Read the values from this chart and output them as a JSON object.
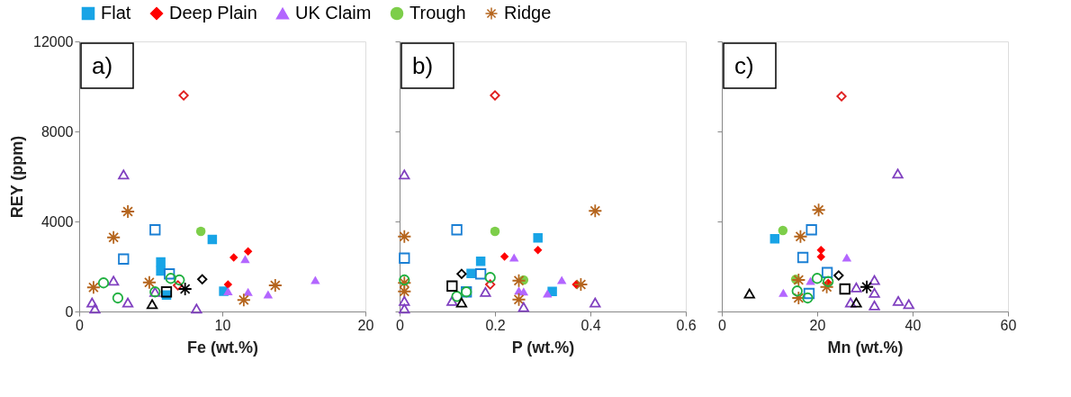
{
  "chart_data": [
    {
      "type": "scatter",
      "xlabel": "Fe (wt.%)",
      "ylabel": "REY (ppm)",
      "xlim": [
        0,
        20
      ],
      "xticks": [
        0,
        10,
        20
      ],
      "ylim": [
        0,
        12000
      ],
      "yticks": [
        0,
        4000,
        8000,
        12000
      ],
      "grid": false,
      "legend": "top",
      "annotations": [
        "a)"
      ],
      "series": [
        {
          "name": "Flat",
          "color": "#18a4e6",
          "marker": "square",
          "x": [
            5.7,
            5.7,
            9.3,
            10.1,
            6.1
          ],
          "values": [
            2200,
            1800,
            3200,
            900,
            730
          ]
        },
        {
          "name": "Deep Plain",
          "color": "#ff0000",
          "marker": "diamond",
          "x": [
            10.8,
            11.8,
            10.4
          ],
          "values": [
            2400,
            2670,
            1200
          ]
        },
        {
          "name": "UK Claim",
          "color": "#b366ff",
          "marker": "triangle",
          "x": [
            11.6,
            16.5,
            10.4,
            11.8,
            13.2
          ],
          "values": [
            2330,
            1400,
            900,
            870,
            760
          ]
        },
        {
          "name": "Trough",
          "color": "#7dce4a",
          "marker": "circle",
          "x": [
            8.5
          ],
          "values": [
            3560
          ]
        },
        {
          "name": "Ridge",
          "color": "#b5651d",
          "marker": "cross",
          "x": [
            3.4,
            2.4,
            1.0,
            4.9,
            13.7,
            11.5
          ],
          "values": [
            4440,
            3290,
            1070,
            1290,
            1160,
            510
          ]
        },
        {
          "color": "#1a7fd4",
          "marker": "square",
          "x": [
            5.3,
            3.1,
            6.3
          ],
          "values": [
            3630,
            2330,
            1670
          ]
        },
        {
          "color": "#e02020",
          "marker": "diamond",
          "x": [
            7.3,
            6.9
          ],
          "values": [
            9600,
            1160
          ]
        },
        {
          "color": "#8040c0",
          "marker": "triangle",
          "x": [
            3.1,
            2.4,
            3.4,
            0.9,
            1.1,
            8.2,
            5.3
          ],
          "values": [
            6090,
            1370,
            400,
            400,
            130,
            130,
            870
          ]
        },
        {
          "color": "#20b040",
          "marker": "circle",
          "x": [
            1.7,
            2.7,
            5.3,
            6.4,
            7.0
          ],
          "values": [
            1270,
            600,
            870,
            1470,
            1400
          ]
        },
        {
          "color": "#000000",
          "marker": "triangle",
          "x": [
            5.1
          ],
          "values": [
            330
          ]
        },
        {
          "color": "#000000",
          "marker": "diamond",
          "x": [
            8.6
          ],
          "values": [
            1430
          ]
        },
        {
          "color": "#000000",
          "marker": "cross",
          "x": [
            7.4
          ],
          "values": [
            1000
          ]
        },
        {
          "color": "#000000",
          "marker": "square",
          "x": [
            6.1
          ],
          "values": [
            870
          ]
        }
      ]
    },
    {
      "type": "scatter",
      "xlabel": "P (wt.%)",
      "xlim": [
        0,
        0.6
      ],
      "xticks": [
        0,
        0.2,
        0.4,
        0.6
      ],
      "ylim": [
        0,
        12000
      ],
      "yticks": [
        0,
        4000,
        8000,
        12000
      ],
      "grid": false,
      "tick_labels": "x",
      "annotations": [
        "b)"
      ],
      "series": [
        {
          "name": "Flat",
          "color": "#18a4e6",
          "marker": "square",
          "x": [
            0.29,
            0.17,
            0.15,
            0.32
          ],
          "values": [
            3270,
            2230,
            1690,
            890
          ]
        },
        {
          "name": "Deep Plain",
          "color": "#ff0000",
          "marker": "diamond",
          "x": [
            0.22,
            0.29,
            0.37
          ],
          "values": [
            2440,
            2730,
            1200
          ]
        },
        {
          "name": "UK Claim",
          "color": "#b366ff",
          "marker": "triangle",
          "x": [
            0.24,
            0.34,
            0.31,
            0.25,
            0.26
          ],
          "values": [
            2400,
            1400,
            800,
            930,
            890
          ]
        },
        {
          "name": "Trough",
          "color": "#7dce4a",
          "marker": "circle",
          "x": [
            0.2,
            0.26
          ],
          "values": [
            3560,
            1400
          ]
        },
        {
          "name": "Ridge",
          "color": "#b5651d",
          "marker": "cross",
          "x": [
            0.41,
            0.01,
            0.01,
            0.01,
            0.25,
            0.38,
            0.25
          ],
          "values": [
            4470,
            3330,
            1270,
            890,
            1370,
            1200,
            530
          ]
        },
        {
          "color": "#1a7fd4",
          "marker": "square",
          "x": [
            0.12,
            0.01,
            0.17,
            0.14
          ],
          "values": [
            3630,
            2370,
            1670,
            870
          ]
        },
        {
          "color": "#e02020",
          "marker": "diamond",
          "x": [
            0.2,
            0.19
          ],
          "values": [
            9600,
            1200
          ]
        },
        {
          "color": "#8040c0",
          "marker": "triangle",
          "x": [
            0.01,
            0.01,
            0.01,
            0.26,
            0.41,
            0.18,
            0.11
          ],
          "values": [
            6090,
            470,
            130,
            200,
            400,
            870,
            470
          ]
        },
        {
          "color": "#20b040",
          "marker": "circle",
          "x": [
            0.01,
            0.19,
            0.12,
            0.14
          ],
          "values": [
            1400,
            1510,
            670,
            870
          ]
        },
        {
          "color": "#000000",
          "marker": "square",
          "x": [
            0.11
          ],
          "values": [
            1130
          ]
        },
        {
          "color": "#000000",
          "marker": "diamond",
          "x": [
            0.13
          ],
          "values": [
            1670
          ]
        },
        {
          "color": "#000000",
          "marker": "triangle",
          "x": [
            0.13
          ],
          "values": [
            400
          ]
        }
      ]
    },
    {
      "type": "scatter",
      "xlabel": "Mn (wt.%)",
      "xlim": [
        0,
        60
      ],
      "xticks": [
        0,
        20,
        40,
        60
      ],
      "ylim": [
        0,
        12000
      ],
      "yticks": [
        0,
        4000,
        8000,
        12000
      ],
      "grid": false,
      "tick_labels": "x",
      "annotations": [
        "c)"
      ],
      "series": [
        {
          "name": "Flat",
          "color": "#18a4e6",
          "marker": "square",
          "x": [
            11.1
          ],
          "values": [
            3230
          ]
        },
        {
          "name": "Deep Plain",
          "color": "#ff0000",
          "marker": "diamond",
          "x": [
            20.8,
            20.8,
            22.3
          ],
          "values": [
            2730,
            2430,
            1270
          ]
        },
        {
          "name": "UK Claim",
          "color": "#b366ff",
          "marker": "triangle",
          "x": [
            26.2,
            12.9,
            18.6
          ],
          "values": [
            2400,
            830,
            1360
          ]
        },
        {
          "name": "Trough",
          "color": "#7dce4a",
          "marker": "circle",
          "x": [
            12.8,
            15.5
          ],
          "values": [
            3600,
            1430
          ]
        },
        {
          "name": "Ridge",
          "color": "#b5651d",
          "marker": "cross",
          "x": [
            20.3,
            16.5,
            16.1,
            22.0,
            16.1
          ],
          "values": [
            4510,
            3330,
            1400,
            1090,
            600
          ]
        },
        {
          "color": "#1a7fd4",
          "marker": "square",
          "x": [
            18.8,
            17.0,
            22.1,
            18.3
          ],
          "values": [
            3630,
            2400,
            1730,
            800
          ]
        },
        {
          "color": "#e02020",
          "marker": "diamond",
          "x": [
            25.1
          ],
          "values": [
            9560
          ]
        },
        {
          "color": "#8040c0",
          "marker": "triangle",
          "x": [
            36.9,
            32.0,
            32.0,
            32.0,
            37.0,
            39.2,
            27.0,
            28.2
          ],
          "values": [
            6130,
            1400,
            830,
            270,
            470,
            330,
            400,
            1070
          ]
        },
        {
          "color": "#20b040",
          "marker": "circle",
          "x": [
            15.8,
            18.0,
            20.0,
            22.3
          ],
          "values": [
            910,
            600,
            1470,
            1330
          ]
        },
        {
          "color": "#000000",
          "marker": "triangle",
          "x": [
            5.8,
            28.2
          ],
          "values": [
            800,
            400
          ]
        },
        {
          "color": "#000000",
          "marker": "diamond",
          "x": [
            24.5
          ],
          "values": [
            1600
          ]
        },
        {
          "color": "#000000",
          "marker": "square",
          "x": [
            25.8
          ],
          "values": [
            1000
          ]
        },
        {
          "color": "#000000",
          "marker": "cross",
          "x": [
            30.4
          ],
          "values": [
            1090
          ]
        }
      ]
    }
  ]
}
